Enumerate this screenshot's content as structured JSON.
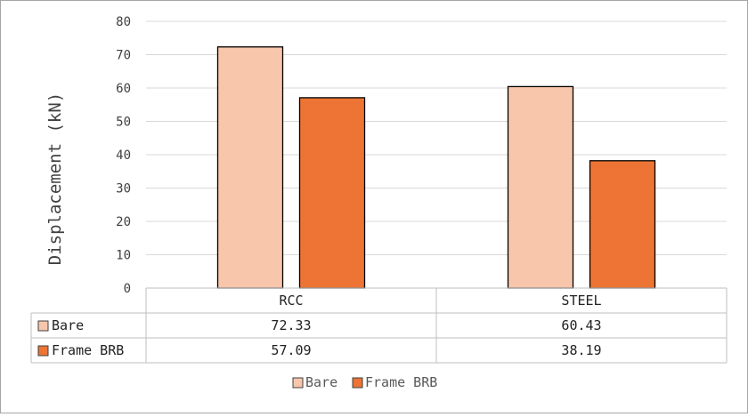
{
  "chart_data": {
    "type": "bar",
    "title": "",
    "xlabel": "",
    "ylabel": "Displacement (kN)",
    "categories": [
      "RCC",
      "STEEL"
    ],
    "series": [
      {
        "name": "Bare",
        "values": [
          72.33,
          60.43
        ],
        "color": "#f7c6ab"
      },
      {
        "name": "Frame BRB",
        "values": [
          57.09,
          38.19
        ],
        "color": "#ed7434"
      }
    ],
    "ylim": [
      0,
      80
    ],
    "yticks": [
      "0",
      "10",
      "20",
      "30",
      "40",
      "50",
      "60",
      "70",
      "80"
    ],
    "data_table": {
      "rows": [
        {
          "name": "Bare",
          "values": [
            "72.33",
            "60.43"
          ]
        },
        {
          "name": "Frame BRB",
          "values": [
            "57.09",
            "38.19"
          ]
        }
      ]
    },
    "grid": true,
    "legend": "bottom"
  }
}
